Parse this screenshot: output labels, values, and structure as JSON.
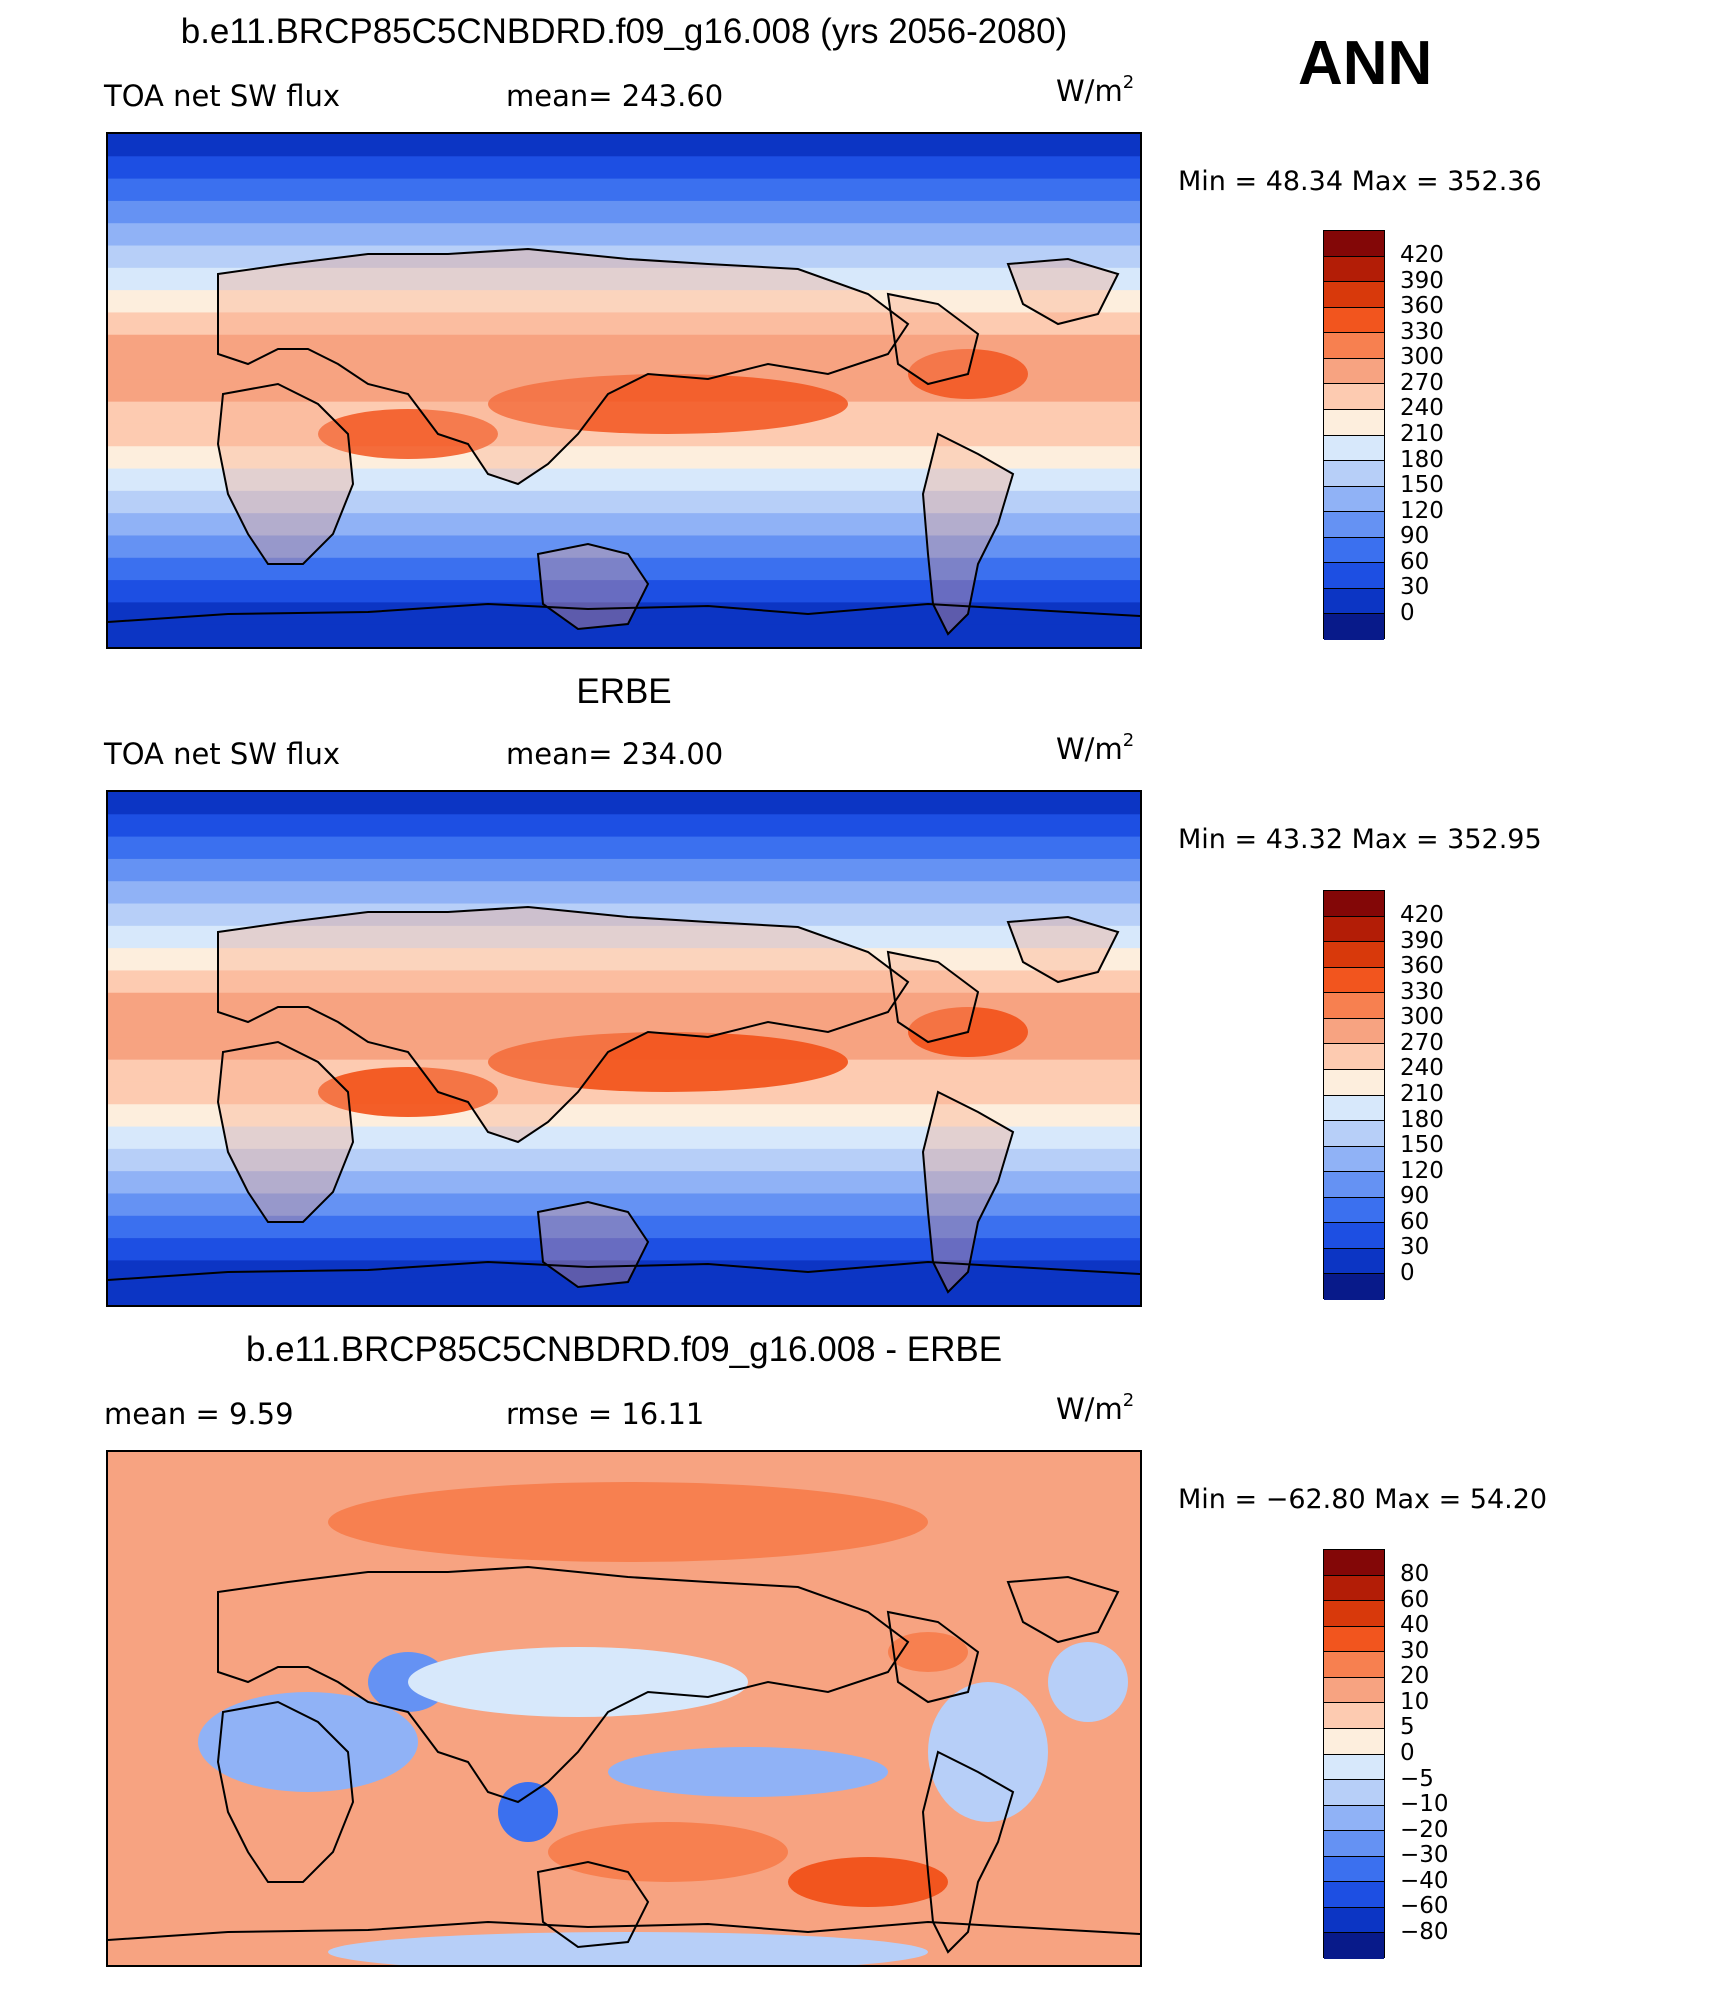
{
  "season": "ANN",
  "panels": [
    {
      "title": "b.e11.BRCP85C5CNBDRD.f09_g16.008 (yrs 2056-2080)",
      "left_label": "TOA  net  SW  flux",
      "mid_label": "mean=  243.60",
      "units": "W/m",
      "units_exp": "2",
      "minmax": "Min  =    48.34  Max  =  352.36",
      "map_kind": "absolute"
    },
    {
      "title": "ERBE",
      "left_label": "TOA  net  SW  flux",
      "mid_label": "mean=  234.00",
      "units": "W/m",
      "units_exp": "2",
      "minmax": "Min  =    43.32  Max  =  352.95",
      "map_kind": "absolute"
    },
    {
      "title": "b.e11.BRCP85C5CNBDRD.f09_g16.008 - ERBE",
      "left_label": "mean  =      9.59",
      "mid_label": "rmse  =    16.11",
      "units": "W/m",
      "units_exp": "2",
      "minmax": "Min  =  −62.80  Max  =     54.20",
      "map_kind": "difference"
    }
  ],
  "colorbars": {
    "absolute": {
      "labels": [
        "420",
        "390",
        "360",
        "330",
        "300",
        "270",
        "240",
        "210",
        "180",
        "150",
        "120",
        "90",
        "60",
        "30",
        "0"
      ],
      "colors": [
        "#830707",
        "#b31d06",
        "#d8390b",
        "#f2551e",
        "#f78050",
        "#f7a381",
        "#fdcbb1",
        "#fdeedd",
        "#d7e8fb",
        "#b7cff8",
        "#90b2f6",
        "#6592f3",
        "#3b70ef",
        "#1d4fe3",
        "#0c35c4",
        "#081a8a"
      ]
    },
    "difference": {
      "labels": [
        "80",
        "60",
        "40",
        "30",
        "20",
        "10",
        "5",
        "0",
        "−5",
        "−10",
        "−20",
        "−30",
        "−40",
        "−60",
        "−80"
      ],
      "colors": [
        "#830707",
        "#b31d06",
        "#d8390b",
        "#f2551e",
        "#f78050",
        "#f7a381",
        "#fdcbb1",
        "#fdeedd",
        "#d7e8fb",
        "#b7cff8",
        "#90b2f6",
        "#6592f3",
        "#3b70ef",
        "#1d4fe3",
        "#0c35c4",
        "#081a8a"
      ]
    }
  }
}
